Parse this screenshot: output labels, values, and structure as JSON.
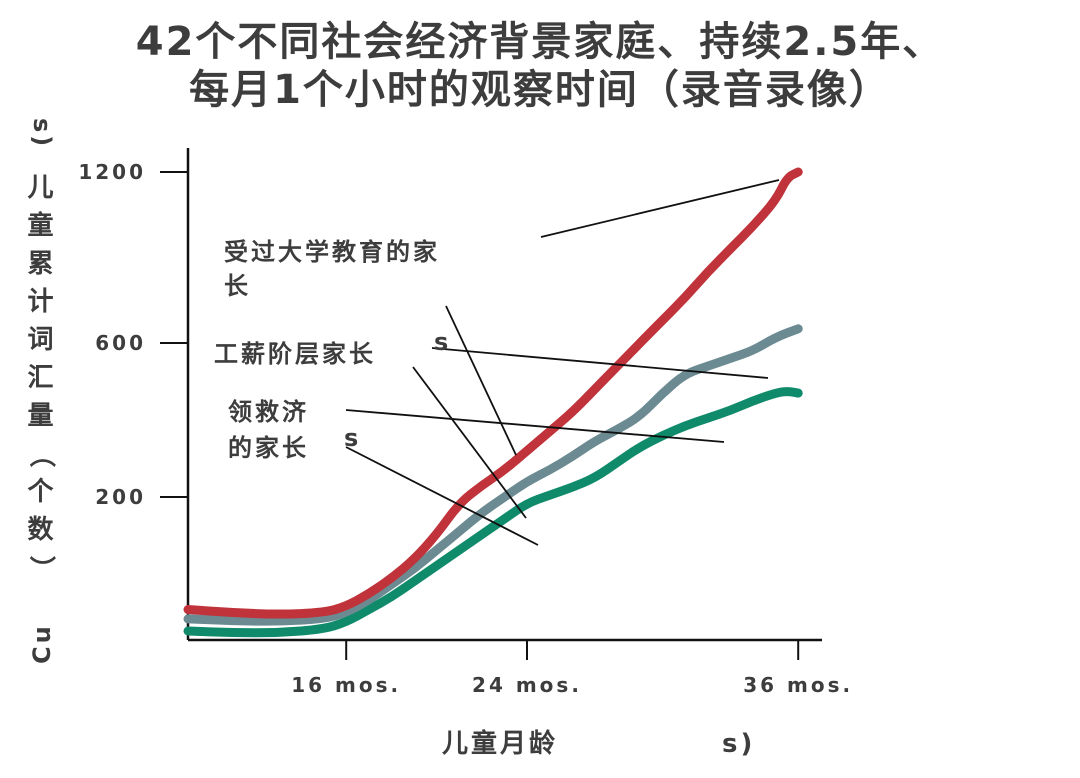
{
  "chart_data": {
    "type": "line",
    "title": [
      "42个不同社会经济背景家庭、持续2.5年、",
      "每月1个小时的观察时间（录音录像）"
    ],
    "xlabel": "儿童月龄",
    "xlabel_ghost": "s)",
    "ylabel": "儿童累计词汇量（个数）",
    "ylabel_ghost_top": "s)",
    "ylabel_ghost_bottom": "Cu",
    "x_ticks": [
      16,
      24,
      36
    ],
    "x_tick_labels": [
      "16 mos.",
      "24 mos.",
      "36 mos."
    ],
    "xlim": [
      9,
      36.5
    ],
    "y_ticks": [
      200,
      600,
      1200
    ],
    "y_tick_labels": [
      "200",
      "600",
      "1200"
    ],
    "y_scale": "nonlinear",
    "series": [
      {
        "name": "受过大学教育的家长",
        "color": "#c0333b",
        "x": [
          9,
          11,
          13,
          15,
          16,
          17,
          18,
          19,
          20,
          21,
          22,
          23,
          24,
          25,
          26,
          27,
          28,
          29,
          30,
          31,
          32,
          33,
          34,
          35,
          35.5,
          36
        ],
        "y": [
          20,
          15,
          12,
          15,
          25,
          45,
          70,
          100,
          140,
          190,
          230,
          270,
          320,
          370,
          420,
          480,
          540,
          600,
          680,
          760,
          850,
          930,
          1010,
          1100,
          1180,
          1200
        ]
      },
      {
        "name": "工薪阶层家长",
        "color": "#6b8a92",
        "x": [
          9,
          11,
          13,
          15,
          16,
          17,
          18,
          19,
          20,
          21,
          22,
          23,
          24,
          25,
          26,
          27,
          28,
          29,
          30,
          31,
          32,
          33,
          34,
          35,
          36
        ],
        "y": [
          5,
          2,
          1,
          5,
          15,
          35,
          60,
          85,
          115,
          145,
          175,
          200,
          240,
          270,
          305,
          345,
          375,
          410,
          470,
          520,
          540,
          560,
          580,
          620,
          650
        ]
      },
      {
        "name": "领救济的家长",
        "color": "#0f8a6a",
        "x": [
          9,
          11,
          13,
          15,
          16,
          17,
          18,
          19,
          20,
          21,
          22,
          23,
          24,
          25,
          26,
          27,
          28,
          29,
          30,
          31,
          32,
          33,
          34,
          35,
          35.5,
          36
        ],
        "y": [
          -10,
          -12,
          -12,
          -8,
          0,
          20,
          40,
          65,
          90,
          115,
          140,
          165,
          190,
          205,
          225,
          250,
          290,
          330,
          360,
          385,
          405,
          425,
          450,
          470,
          475,
          470
        ]
      }
    ],
    "annotations": [
      {
        "text": [
          "受过大学教育的家",
          "长"
        ],
        "ghost": ""
      },
      {
        "text": [
          "工薪阶层家长"
        ],
        "ghost": "s"
      },
      {
        "text": [
          "领救济",
          "的家长"
        ],
        "ghost": "s"
      }
    ],
    "grid": false,
    "legend": "none"
  }
}
